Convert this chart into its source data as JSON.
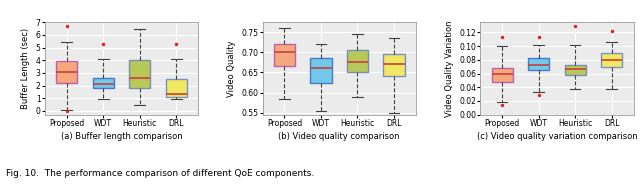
{
  "title_a": "(a) Buffer length comparison",
  "title_b": "(b) Video quality comparison",
  "title_c": "(c) Video quality variation comparison",
  "caption": "Fig. 10.  The performance comparison of different QoE components.",
  "categories": [
    "Proposed",
    "WDT",
    "Heuristic",
    "DRL"
  ],
  "ylabel_a": "Buffer Length (sec)",
  "ylabel_b": "Video Quality",
  "ylabel_c": "Video Quality Variation",
  "box_a": {
    "Proposed": {
      "whislo": 0.05,
      "q1": 2.2,
      "med": 3.1,
      "q3": 3.95,
      "whishi": 5.4,
      "fliers": [
        6.7,
        0.0
      ]
    },
    "WDT": {
      "whislo": 0.9,
      "q1": 1.8,
      "med": 2.1,
      "q3": 2.6,
      "whishi": 4.1,
      "fliers": [
        5.3
      ]
    },
    "Heuristic": {
      "whislo": 0.5,
      "q1": 1.8,
      "med": 2.6,
      "q3": 4.0,
      "whishi": 6.5,
      "fliers": []
    },
    "DRL": {
      "whislo": 0.9,
      "q1": 1.1,
      "med": 1.3,
      "q3": 2.5,
      "whishi": 4.1,
      "fliers": [
        5.3
      ]
    }
  },
  "box_b": {
    "Proposed": {
      "whislo": 0.585,
      "q1": 0.665,
      "med": 0.7,
      "q3": 0.72,
      "whishi": 0.76,
      "fliers": []
    },
    "WDT": {
      "whislo": 0.555,
      "q1": 0.625,
      "med": 0.66,
      "q3": 0.685,
      "whishi": 0.72,
      "fliers": []
    },
    "Heuristic": {
      "whislo": 0.59,
      "q1": 0.65,
      "med": 0.675,
      "q3": 0.705,
      "whishi": 0.745,
      "fliers": []
    },
    "DRL": {
      "whislo": 0.55,
      "q1": 0.64,
      "med": 0.672,
      "q3": 0.695,
      "whishi": 0.735,
      "fliers": []
    }
  },
  "box_c": {
    "Proposed": {
      "whislo": 0.018,
      "q1": 0.048,
      "med": 0.06,
      "q3": 0.068,
      "whishi": 0.1,
      "fliers": [
        0.014,
        0.113
      ]
    },
    "WDT": {
      "whislo": 0.033,
      "q1": 0.065,
      "med": 0.072,
      "q3": 0.083,
      "whishi": 0.102,
      "fliers": [
        0.114,
        0.029
      ]
    },
    "Heuristic": {
      "whislo": 0.038,
      "q1": 0.058,
      "med": 0.067,
      "q3": 0.073,
      "whishi": 0.102,
      "fliers": [
        0.13
      ]
    },
    "DRL": {
      "whislo": 0.038,
      "q1": 0.07,
      "med": 0.08,
      "q3": 0.09,
      "whishi": 0.106,
      "fliers": [
        0.122
      ]
    }
  },
  "colors": {
    "Proposed": {
      "face": "#F5A87C",
      "edge": "#C060A8"
    },
    "WDT": {
      "face": "#72C8E8",
      "edge": "#4878C8"
    },
    "Heuristic": {
      "face": "#B8C858",
      "edge": "#7890B0"
    },
    "DRL": {
      "face": "#F0E860",
      "edge": "#7890C8"
    }
  },
  "median_color": "#C84040",
  "flier_color": "#DD2222",
  "whisker_color": "#404040",
  "bg_color": "#EBEBEB",
  "grid_color": "#FFFFFF",
  "ylim_a": [
    -0.3,
    7.0
  ],
  "ylim_b": [
    0.545,
    0.775
  ],
  "ylim_c": [
    0.0,
    0.135
  ],
  "yticks_a": [
    0,
    1,
    2,
    3,
    4,
    5,
    6,
    7
  ],
  "yticks_b": [
    0.55,
    0.6,
    0.65,
    0.7,
    0.75
  ],
  "yticks_c": [
    0.0,
    0.02,
    0.04,
    0.06,
    0.08,
    0.1,
    0.12
  ],
  "tick_fontsize": 5.5,
  "label_fontsize": 6.0,
  "title_fontsize": 6.0,
  "caption_fontsize": 6.5
}
